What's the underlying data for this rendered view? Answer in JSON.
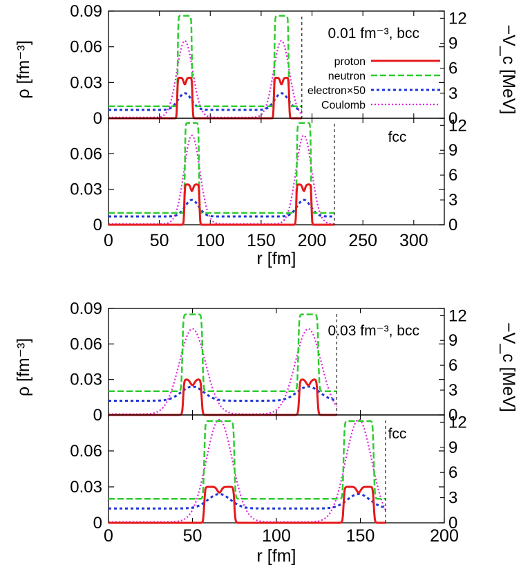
{
  "colors": {
    "proton": "#e41a1c",
    "neutron": "#2ecc2e",
    "electron": "#1f35d8",
    "coulomb": "#e020e0"
  },
  "chart_data": [
    {
      "figure": "top",
      "type": "line",
      "xlabel": "r [fm]",
      "ylabel": "ρ [fm⁻³]",
      "y2label": "−V_c [MeV]",
      "xlim": [
        0,
        330
      ],
      "xticks": [
        "0",
        "50",
        "100",
        "150",
        "200",
        "250",
        "300"
      ],
      "legend": {
        "placement": "top-right",
        "entries": [
          "proton",
          "neutron",
          "electron×50",
          "Coulomb"
        ]
      },
      "panels": [
        {
          "label": "0.01 fm⁻³, bcc",
          "ylim": [
            0,
            0.09
          ],
          "yticks": [
            "0",
            "0.03",
            "0.06",
            "0.09"
          ],
          "y2lim": [
            0,
            12.86
          ],
          "y2ticks": [
            "0",
            "3",
            "6",
            "9",
            "12"
          ],
          "cell_edge": 190,
          "peaks": [
            75,
            170
          ],
          "series": [
            {
              "name": "proton",
              "nucleus_width": 7.5,
              "peak_density": 0.034,
              "background": 0
            },
            {
              "name": "neutron",
              "nucleus_width": 7,
              "peak_density": 0.086,
              "background": 0.01
            },
            {
              "name": "electron×50",
              "peak_density": 0.021,
              "background": 0.007
            },
            {
              "name": "Coulomb",
              "peak_potential_MeV": 9.3,
              "minimum_potential_MeV": 0.1
            }
          ]
        },
        {
          "label": "fcc",
          "ylim": [
            0,
            0.09
          ],
          "yticks": [
            "0",
            "0.03",
            "0.06"
          ],
          "y2lim": [
            0,
            12.86
          ],
          "y2ticks": [
            "0",
            "3",
            "6",
            "9",
            "12"
          ],
          "cell_edge": 222,
          "peaks": [
            82,
            192
          ],
          "series": [
            {
              "name": "proton",
              "nucleus_width": 7.5,
              "peak_density": 0.034,
              "background": 0
            },
            {
              "name": "neutron",
              "nucleus_width": 7,
              "peak_density": 0.086,
              "background": 0.01
            },
            {
              "name": "electron×50",
              "peak_density": 0.021,
              "background": 0.007
            },
            {
              "name": "Coulomb",
              "peak_potential_MeV": 10.8,
              "minimum_potential_MeV": 0.1
            }
          ]
        }
      ]
    },
    {
      "figure": "bottom",
      "type": "line",
      "xlabel": "r [fm]",
      "ylabel": "ρ [fm⁻³]",
      "y2label": "−V_c [MeV]",
      "xlim": [
        0,
        200
      ],
      "xticks": [
        "0",
        "50",
        "100",
        "150",
        "200"
      ],
      "panels": [
        {
          "label": "0.03 fm⁻³, bcc",
          "ylim": [
            0,
            0.09
          ],
          "yticks": [
            "0",
            "0.03",
            "0.06",
            "0.09"
          ],
          "y2lim": [
            0,
            12.86
          ],
          "y2ticks": [
            "0",
            "3",
            "6",
            "9",
            "12"
          ],
          "cell_edge": 136,
          "peaks": [
            50,
            119
          ],
          "series": [
            {
              "name": "proton",
              "nucleus_width": 5.5,
              "peak_density": 0.03,
              "background": 0
            },
            {
              "name": "neutron",
              "nucleus_width": 6,
              "peak_density": 0.085,
              "background": 0.02
            },
            {
              "name": "electron×50",
              "peak_density": 0.024,
              "background": 0.012
            },
            {
              "name": "Coulomb",
              "peak_potential_MeV": 10.4,
              "minimum_potential_MeV": 0.1
            }
          ]
        },
        {
          "label": "fcc",
          "ylim": [
            0,
            0.09
          ],
          "yticks": [
            "0",
            "0.03",
            "0.06"
          ],
          "y2lim": [
            0,
            12.86
          ],
          "y2ticks": [
            "0",
            "3",
            "6",
            "9",
            "12"
          ],
          "cell_edge": 165,
          "peaks": [
            66,
            149
          ],
          "series": [
            {
              "name": "proton",
              "nucleus_width": 9,
              "peak_density": 0.03,
              "background": 0
            },
            {
              "name": "neutron",
              "nucleus_width": 9,
              "peak_density": 0.085,
              "background": 0.02
            },
            {
              "name": "electron×50",
              "peak_density": 0.024,
              "background": 0.012
            },
            {
              "name": "Coulomb",
              "peak_potential_MeV": 12.3,
              "minimum_potential_MeV": 0.1
            }
          ]
        }
      ]
    }
  ]
}
